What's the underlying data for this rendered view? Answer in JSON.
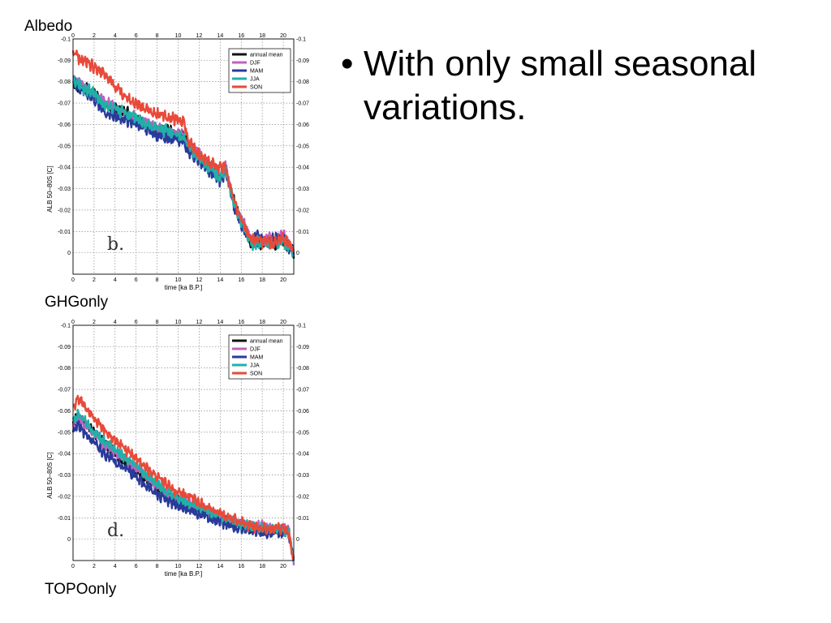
{
  "captions": {
    "top": "Albedo",
    "middle": "GHGonly",
    "bottom": "TOPOonly"
  },
  "bullets": [
    {
      "text": "With only small seasonal variations."
    }
  ],
  "colors": {
    "annual mean": "#111111",
    "DJF": "#c060c0",
    "MAM": "#2a3a9a",
    "JJA": "#20b0a8",
    "SON": "#e84a3a"
  },
  "chart_data": [
    {
      "type": "line",
      "panel_label": "b.",
      "xlabel": "time [ka B.P.]",
      "ylabel": "ALB  50–80S [C]",
      "xlim": [
        0,
        21
      ],
      "ylim": [
        -0.1,
        0.01
      ],
      "y_reversed": true,
      "xticks": [
        0,
        2,
        4,
        6,
        8,
        10,
        12,
        14,
        16,
        18,
        20
      ],
      "yticks": [
        -0.1,
        -0.09,
        -0.08,
        -0.07,
        -0.06,
        -0.05,
        -0.04,
        -0.03,
        -0.02,
        -0.01,
        0
      ],
      "ytick_labels": [
        "-0.1",
        "-0.09",
        "-0.08",
        "-0.07",
        "-0.06",
        "-0.05",
        "-0.04",
        "-0.03",
        "-0.02",
        "-0.01",
        "0"
      ],
      "grid": true,
      "legend": "top-right",
      "x": [
        0,
        1,
        2,
        3,
        4,
        5,
        6,
        7,
        8,
        9,
        10,
        10.5,
        11,
        12,
        13,
        14,
        14.5,
        15,
        15.5,
        16,
        16.5,
        17,
        17.5,
        18,
        19,
        20,
        20.5,
        21
      ],
      "series": [
        {
          "name": "annual mean",
          "values": [
            -0.08,
            -0.077,
            -0.075,
            -0.07,
            -0.067,
            -0.066,
            -0.063,
            -0.06,
            -0.058,
            -0.057,
            -0.055,
            -0.054,
            -0.05,
            -0.045,
            -0.04,
            -0.035,
            -0.04,
            -0.03,
            -0.02,
            -0.015,
            -0.01,
            -0.004,
            -0.006,
            -0.004,
            -0.004,
            -0.005,
            -0.003,
            0
          ]
        },
        {
          "name": "DJF",
          "values": [
            -0.082,
            -0.078,
            -0.074,
            -0.071,
            -0.068,
            -0.065,
            -0.063,
            -0.061,
            -0.058,
            -0.056,
            -0.055,
            -0.055,
            -0.05,
            -0.046,
            -0.04,
            -0.036,
            -0.041,
            -0.03,
            -0.02,
            -0.016,
            -0.011,
            -0.006,
            -0.008,
            -0.006,
            -0.007,
            -0.008,
            -0.004,
            -0.002
          ]
        },
        {
          "name": "MAM",
          "values": [
            -0.08,
            -0.075,
            -0.072,
            -0.066,
            -0.064,
            -0.062,
            -0.06,
            -0.058,
            -0.055,
            -0.054,
            -0.053,
            -0.052,
            -0.047,
            -0.043,
            -0.038,
            -0.034,
            -0.038,
            -0.028,
            -0.019,
            -0.013,
            -0.009,
            -0.005,
            -0.008,
            -0.006,
            -0.006,
            -0.008,
            -0.003,
            0
          ]
        },
        {
          "name": "JJA",
          "values": [
            -0.08,
            -0.077,
            -0.075,
            -0.069,
            -0.067,
            -0.065,
            -0.063,
            -0.06,
            -0.058,
            -0.057,
            -0.055,
            -0.053,
            -0.05,
            -0.044,
            -0.039,
            -0.035,
            -0.039,
            -0.029,
            -0.02,
            -0.015,
            -0.01,
            -0.003,
            -0.005,
            -0.004,
            -0.004,
            -0.005,
            -0.003,
            0
          ]
        },
        {
          "name": "SON",
          "values": [
            -0.093,
            -0.09,
            -0.087,
            -0.083,
            -0.078,
            -0.073,
            -0.07,
            -0.067,
            -0.065,
            -0.064,
            -0.062,
            -0.062,
            -0.052,
            -0.046,
            -0.042,
            -0.04,
            -0.04,
            -0.03,
            -0.022,
            -0.016,
            -0.01,
            -0.006,
            -0.006,
            -0.005,
            -0.005,
            -0.007,
            -0.004,
            -0.001
          ]
        }
      ]
    },
    {
      "type": "line",
      "panel_label": "d.",
      "xlabel": "time [ka B.P.]",
      "ylabel": "ALB  50–80S [C]",
      "xlim": [
        0,
        21
      ],
      "ylim": [
        -0.1,
        0.01
      ],
      "y_reversed": true,
      "xticks": [
        0,
        2,
        4,
        6,
        8,
        10,
        12,
        14,
        16,
        18,
        20
      ],
      "yticks": [
        -0.1,
        -0.09,
        -0.08,
        -0.07,
        -0.06,
        -0.05,
        -0.04,
        -0.03,
        -0.02,
        -0.01,
        0
      ],
      "ytick_labels": [
        "-0.1",
        "-0.09",
        "-0.08",
        "-0.07",
        "-0.06",
        "-0.05",
        "-0.04",
        "-0.03",
        "-0.02",
        "-0.01",
        "0"
      ],
      "grid": true,
      "legend": "top-right",
      "x": [
        0,
        0.5,
        1,
        2,
        3,
        4,
        5,
        6,
        7,
        8,
        9,
        10,
        11,
        12,
        13,
        14,
        15,
        16,
        17,
        18,
        19,
        20,
        20.5,
        21
      ],
      "series": [
        {
          "name": "annual mean",
          "values": [
            -0.055,
            -0.058,
            -0.055,
            -0.05,
            -0.045,
            -0.04,
            -0.036,
            -0.032,
            -0.028,
            -0.024,
            -0.02,
            -0.018,
            -0.016,
            -0.014,
            -0.012,
            -0.01,
            -0.008,
            -0.007,
            -0.005,
            -0.005,
            -0.004,
            -0.004,
            -0.004,
            0.01
          ]
        },
        {
          "name": "DJF",
          "values": [
            -0.054,
            -0.057,
            -0.054,
            -0.05,
            -0.044,
            -0.041,
            -0.037,
            -0.033,
            -0.029,
            -0.025,
            -0.021,
            -0.019,
            -0.017,
            -0.015,
            -0.013,
            -0.011,
            -0.009,
            -0.007,
            -0.006,
            -0.006,
            -0.005,
            -0.005,
            -0.004,
            0.01
          ]
        },
        {
          "name": "MAM",
          "values": [
            -0.05,
            -0.054,
            -0.05,
            -0.045,
            -0.04,
            -0.036,
            -0.033,
            -0.029,
            -0.025,
            -0.021,
            -0.018,
            -0.016,
            -0.014,
            -0.012,
            -0.01,
            -0.008,
            -0.006,
            -0.005,
            -0.004,
            -0.003,
            -0.003,
            -0.003,
            -0.003,
            0.01
          ]
        },
        {
          "name": "JJA",
          "values": [
            -0.055,
            -0.058,
            -0.056,
            -0.05,
            -0.046,
            -0.042,
            -0.038,
            -0.034,
            -0.03,
            -0.026,
            -0.022,
            -0.019,
            -0.017,
            -0.015,
            -0.013,
            -0.011,
            -0.009,
            -0.007,
            -0.006,
            -0.005,
            -0.005,
            -0.004,
            -0.004,
            0.01
          ]
        },
        {
          "name": "SON",
          "values": [
            -0.06,
            -0.066,
            -0.063,
            -0.057,
            -0.051,
            -0.046,
            -0.042,
            -0.038,
            -0.033,
            -0.029,
            -0.025,
            -0.022,
            -0.02,
            -0.017,
            -0.014,
            -0.012,
            -0.01,
            -0.008,
            -0.006,
            -0.005,
            -0.005,
            -0.005,
            -0.003,
            0.01
          ]
        }
      ]
    }
  ]
}
